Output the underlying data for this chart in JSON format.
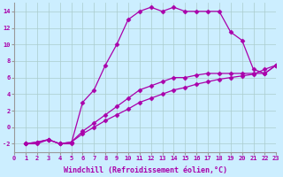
{
  "xlabel": "Windchill (Refroidissement éolien,°C)",
  "background_color": "#cceeff",
  "grid_color": "#aacccc",
  "line_color": "#aa00aa",
  "line1_x": [
    1,
    2,
    3,
    4,
    5,
    6,
    7,
    8,
    9,
    10,
    11,
    12,
    13,
    14,
    15,
    16,
    17,
    18,
    19,
    20,
    21,
    22,
    23
  ],
  "line1_y": [
    -2,
    -2,
    -1.5,
    -2,
    -2,
    3.0,
    4.5,
    7.5,
    10,
    13,
    14,
    14.5,
    14,
    14.5,
    14,
    14,
    14,
    14,
    11.5,
    10.5,
    7,
    6.5,
    7.5
  ],
  "line2_x": [
    1,
    2,
    3,
    4,
    5,
    6,
    7,
    8,
    9,
    10,
    11,
    12,
    13,
    14,
    15,
    16,
    17,
    18,
    19,
    20,
    21,
    22,
    23
  ],
  "line2_y": [
    -2,
    -1.8,
    -1.5,
    -2,
    -1.8,
    -0.5,
    0.5,
    1.5,
    2.5,
    3.5,
    4.5,
    5.0,
    5.5,
    6.0,
    6.0,
    6.3,
    6.5,
    6.5,
    6.5,
    6.5,
    6.5,
    6.5,
    7.5
  ],
  "line3_x": [
    1,
    2,
    3,
    4,
    5,
    6,
    7,
    8,
    9,
    10,
    11,
    12,
    13,
    14,
    15,
    16,
    17,
    18,
    19,
    20,
    21,
    22,
    23
  ],
  "line3_y": [
    -2,
    -1.8,
    -1.5,
    -2,
    -1.8,
    -0.8,
    0.0,
    0.8,
    1.5,
    2.2,
    3.0,
    3.5,
    4.0,
    4.5,
    4.8,
    5.2,
    5.5,
    5.8,
    6.0,
    6.2,
    6.4,
    7.0,
    7.5
  ],
  "xlim": [
    0,
    23
  ],
  "ylim": [
    -3,
    15
  ],
  "xticks": [
    0,
    1,
    2,
    3,
    4,
    5,
    6,
    7,
    8,
    9,
    10,
    11,
    12,
    13,
    14,
    15,
    16,
    17,
    18,
    19,
    20,
    21,
    22,
    23
  ],
  "yticks": [
    -2,
    0,
    2,
    4,
    6,
    8,
    10,
    12,
    14
  ],
  "tick_fontsize": 5.0,
  "xlabel_fontsize": 6.0,
  "lw": 0.9,
  "marker": "D",
  "markersize": 2.5
}
